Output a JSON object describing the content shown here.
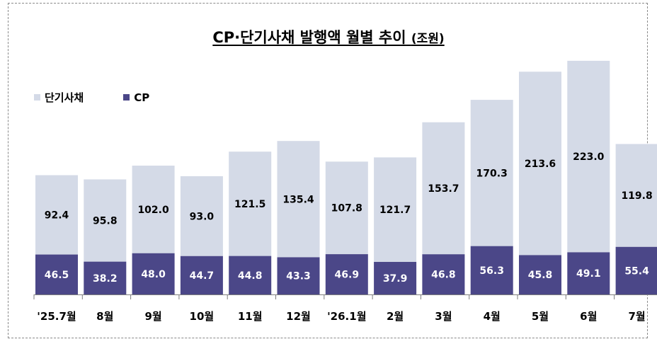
{
  "title": "CP·단기사채 발행액 월별 추이",
  "unit": "(조원)",
  "legend": [
    {
      "name": "단기사채",
      "color": "#d4dae7"
    },
    {
      "name": "CP",
      "color": "#4b4788"
    }
  ],
  "chart_data": {
    "type": "bar",
    "stacked": true,
    "categories": [
      "'25.7월",
      "8월",
      "9월",
      "10월",
      "11월",
      "12월",
      "'26.1월",
      "2월",
      "3월",
      "4월",
      "5월",
      "6월",
      "7월"
    ],
    "series": [
      {
        "name": "CP",
        "color": "#4b4788",
        "values": [
          46.5,
          38.2,
          48.0,
          44.7,
          44.8,
          43.3,
          46.9,
          37.9,
          46.8,
          56.3,
          45.8,
          49.1,
          55.4
        ],
        "labels": [
          "46.5",
          "38.2",
          "48.0",
          "44.7",
          "44.8",
          "43.3",
          "46.9",
          "37.9",
          "46.8",
          "56.3",
          "45.8",
          "49.1",
          "55.4"
        ]
      },
      {
        "name": "단기사채",
        "color": "#d4dae7",
        "values": [
          92.4,
          95.8,
          102.0,
          93.0,
          121.5,
          135.4,
          107.8,
          121.7,
          153.7,
          170.3,
          213.6,
          223.0,
          119.8
        ],
        "labels": [
          "92.4",
          "95.8",
          "102.0",
          "93.0",
          "121.5",
          "135.4",
          "107.8",
          "121.7",
          "153.7",
          "170.3",
          "213.6",
          "223.0",
          "119.8"
        ]
      }
    ],
    "ylim": [
      0,
      272
    ],
    "grid": false,
    "legend_position": "top-left"
  }
}
